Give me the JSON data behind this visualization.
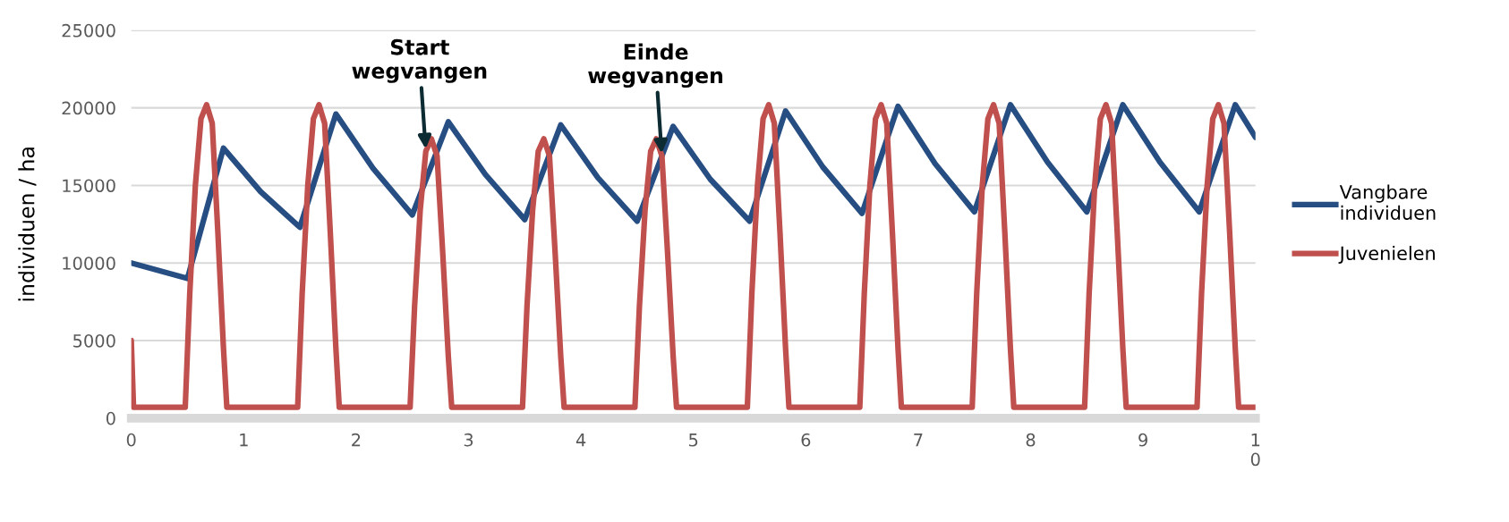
{
  "chart_data": {
    "type": "line",
    "ylabel": "individuen / ha",
    "xlim": [
      0,
      10
    ],
    "xticks": [
      0,
      1,
      2,
      3,
      4,
      5,
      6,
      7,
      8,
      9,
      {
        "value": 10,
        "label": "1\n0"
      }
    ],
    "ylim": [
      0,
      25000
    ],
    "yticks": [
      0,
      5000,
      10000,
      15000,
      20000,
      25000
    ],
    "grid": "y",
    "legend": "right",
    "marker": "none",
    "line_style": "solid",
    "annotations": [
      {
        "text": "Start\nwegvangen",
        "x": 2.62,
        "y": 17200
      },
      {
        "text": "Einde\nwegvangen",
        "x": 4.72,
        "y": 16900
      }
    ],
    "series": [
      {
        "name": "Vangbare\nindividuen",
        "color": "#264e82",
        "x": [
          0,
          0.5,
          0.82,
          1.15,
          1.5,
          1.82,
          2.15,
          2.5,
          2.82,
          3.15,
          3.5,
          3.82,
          4.15,
          4.5,
          4.82,
          5.15,
          5.5,
          5.82,
          6.15,
          6.5,
          6.82,
          7.15,
          7.5,
          7.82,
          8.15,
          8.5,
          8.82,
          9.15,
          9.5,
          9.82,
          10
        ],
        "values": [
          10000,
          9000,
          17400,
          14600,
          12300,
          19600,
          16100,
          13100,
          19100,
          15700,
          12800,
          18900,
          15500,
          12700,
          18800,
          15400,
          12700,
          19800,
          16200,
          13200,
          20100,
          16400,
          13300,
          20200,
          16500,
          13300,
          20200,
          16500,
          13300,
          20200,
          18100
        ]
      },
      {
        "name": "Juvenielen",
        "color": "#c0504d",
        "x": [
          0,
          0.02,
          0.48,
          0.52,
          0.57,
          0.62,
          0.67,
          0.72,
          0.77,
          0.82,
          0.85,
          1.48,
          1.52,
          1.57,
          1.62,
          1.67,
          1.72,
          1.77,
          1.82,
          1.85,
          2.48,
          2.52,
          2.57,
          2.62,
          2.67,
          2.72,
          2.77,
          2.82,
          2.85,
          3.48,
          3.52,
          3.57,
          3.62,
          3.67,
          3.72,
          3.77,
          3.82,
          3.85,
          4.48,
          4.52,
          4.57,
          4.62,
          4.67,
          4.72,
          4.77,
          4.82,
          4.85,
          5.48,
          5.52,
          5.57,
          5.62,
          5.67,
          5.72,
          5.77,
          5.82,
          5.85,
          6.48,
          6.52,
          6.57,
          6.62,
          6.67,
          6.72,
          6.77,
          6.82,
          6.85,
          7.48,
          7.52,
          7.57,
          7.62,
          7.67,
          7.72,
          7.77,
          7.82,
          7.85,
          8.48,
          8.52,
          8.57,
          8.62,
          8.67,
          8.72,
          8.77,
          8.82,
          8.85,
          9.48,
          9.52,
          9.57,
          9.62,
          9.67,
          9.72,
          9.77,
          9.82,
          9.85,
          10
        ],
        "values": [
          5000,
          700,
          700,
          8000,
          15000,
          19300,
          20200,
          19000,
          12000,
          4500,
          700,
          700,
          8000,
          15000,
          19300,
          20200,
          19000,
          12000,
          4500,
          700,
          700,
          7200,
          13400,
          17200,
          18000,
          16900,
          10700,
          4000,
          700,
          700,
          7200,
          13400,
          17200,
          18000,
          16900,
          10700,
          4000,
          700,
          700,
          7200,
          13400,
          17200,
          18000,
          16900,
          10700,
          4000,
          700,
          700,
          8000,
          15000,
          19300,
          20200,
          19000,
          12000,
          4500,
          700,
          700,
          8000,
          15000,
          19300,
          20200,
          19000,
          12000,
          4500,
          700,
          700,
          8000,
          15000,
          19300,
          20200,
          19000,
          12000,
          4500,
          700,
          700,
          8000,
          15000,
          19300,
          20200,
          19000,
          12000,
          4500,
          700,
          700,
          8000,
          15000,
          19300,
          20200,
          19000,
          12000,
          4500,
          700,
          700
        ]
      }
    ]
  }
}
